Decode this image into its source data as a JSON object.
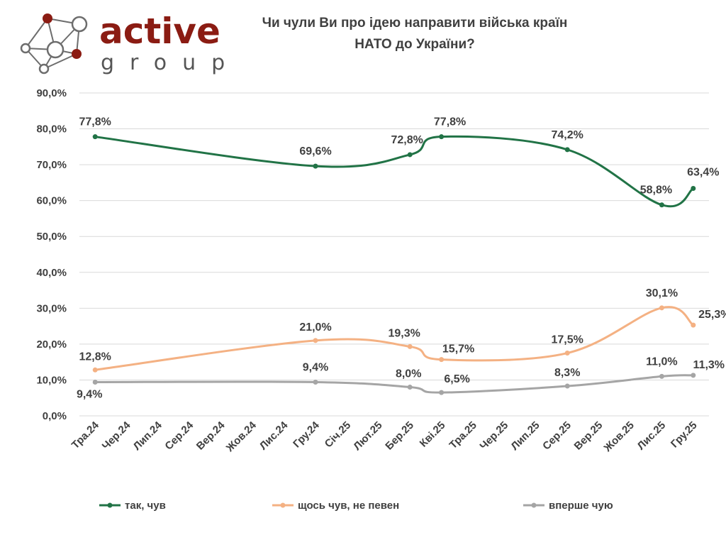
{
  "logo": {
    "word": "active",
    "sub": "group"
  },
  "chart_data": {
    "type": "line",
    "title": "Чи чули Ви про ідею направити війська країн НАТО до України?",
    "title_lines": [
      "Чи чули Ви про ідею направити війська країн",
      "НАТО до України?"
    ],
    "categories": [
      "Тра.24",
      "Чер.24",
      "Лип.24",
      "Сер.24",
      "Вер.24",
      "Жов.24",
      "Лис.24",
      "Гру.24",
      "Січ.25",
      "Лют.25",
      "Бер.25",
      "Кві.25",
      "Тра.25",
      "Чер.25",
      "Лип.25",
      "Сер.25",
      "Вер.25",
      "Жов.25",
      "Лис.25",
      "Гру.25"
    ],
    "ylim": [
      0,
      90
    ],
    "yticks": [
      "0,0%",
      "10,0%",
      "20,0%",
      "30,0%",
      "40,0%",
      "50,0%",
      "60,0%",
      "70,0%",
      "80,0%",
      "90,0%"
    ],
    "grid": true,
    "legend_position": "bottom",
    "series": [
      {
        "name": "так, чув",
        "color": "#217346",
        "points": [
          {
            "category": "Тра.24",
            "value": 77.8,
            "label": "77,8%"
          },
          {
            "category": "Гру.24",
            "value": 69.6,
            "label": "69,6%"
          },
          {
            "category": "Бер.25",
            "value": 72.8,
            "label": "72,8%"
          },
          {
            "category": "Кві.25",
            "value": 77.8,
            "label": "77,8%"
          },
          {
            "category": "Сер.25",
            "value": 74.2,
            "label": "74,2%"
          },
          {
            "category": "Лис.25",
            "value": 58.8,
            "label": "58,8%"
          },
          {
            "category": "Гру.25",
            "value": 63.4,
            "label": "63,4%"
          }
        ]
      },
      {
        "name": "щось чув, не певен",
        "color": "#f4b183",
        "points": [
          {
            "category": "Тра.24",
            "value": 12.8,
            "label": "12,8%"
          },
          {
            "category": "Гру.24",
            "value": 21.0,
            "label": "21,0%"
          },
          {
            "category": "Бер.25",
            "value": 19.3,
            "label": "19,3%"
          },
          {
            "category": "Кві.25",
            "value": 15.7,
            "label": "15,7%"
          },
          {
            "category": "Сер.25",
            "value": 17.5,
            "label": "17,5%"
          },
          {
            "category": "Лис.25",
            "value": 30.1,
            "label": "30,1%"
          },
          {
            "category": "Гру.25",
            "value": 25.3,
            "label": "25,3%"
          }
        ]
      },
      {
        "name": "вперше чую",
        "color": "#a5a5a5",
        "points": [
          {
            "category": "Тра.24",
            "value": 9.4,
            "label": "9,4%"
          },
          {
            "category": "Гру.24",
            "value": 9.4,
            "label": "9,4%"
          },
          {
            "category": "Бер.25",
            "value": 8.0,
            "label": "8,0%"
          },
          {
            "category": "Кві.25",
            "value": 6.5,
            "label": "6,5%"
          },
          {
            "category": "Сер.25",
            "value": 8.3,
            "label": "8,3%"
          },
          {
            "category": "Лис.25",
            "value": 11.0,
            "label": "11,0%"
          },
          {
            "category": "Гру.25",
            "value": 11.3,
            "label": "11,3%"
          }
        ]
      }
    ]
  }
}
